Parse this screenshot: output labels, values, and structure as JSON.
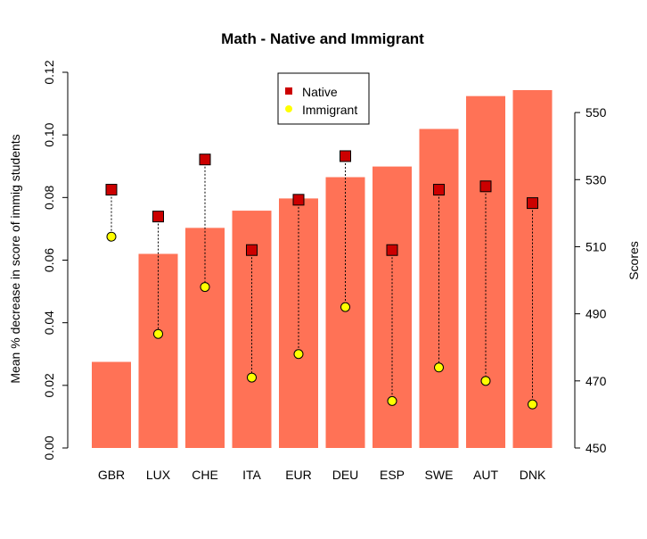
{
  "chart_data": {
    "type": "bar",
    "title": "Math - Native and Immigrant",
    "ylabel": "Mean % decrease in score of immig students",
    "y2label": "Scores",
    "categories": [
      "GBR",
      "LUX",
      "CHE",
      "ITA",
      "EUR",
      "DEU",
      "ESP",
      "SWE",
      "AUT",
      "DNK"
    ],
    "bar_values": [
      0.0275,
      0.062,
      0.0703,
      0.0758,
      0.0797,
      0.0865,
      0.0899,
      0.1019,
      0.1124,
      0.1143
    ],
    "ylim": [
      0,
      0.12
    ],
    "yticks": [
      "0.00",
      "0.02",
      "0.04",
      "0.06",
      "0.08",
      "0.10",
      "0.12"
    ],
    "y2lim": [
      450,
      562
    ],
    "y2ticks": [
      "450",
      "470",
      "490",
      "510",
      "530",
      "550"
    ],
    "series": [
      {
        "name": "Native",
        "values": [
          527,
          519,
          536,
          509,
          524,
          537,
          509,
          527,
          528,
          523
        ],
        "color": "#cc0000",
        "marker": "square"
      },
      {
        "name": "Immigrant",
        "values": [
          513,
          484,
          498,
          471,
          478,
          492,
          464,
          474,
          470,
          463
        ],
        "color": "#ffff00",
        "marker": "circle"
      }
    ],
    "bar_color": "#ff7256",
    "legend_position": "top-center",
    "grid": false
  }
}
